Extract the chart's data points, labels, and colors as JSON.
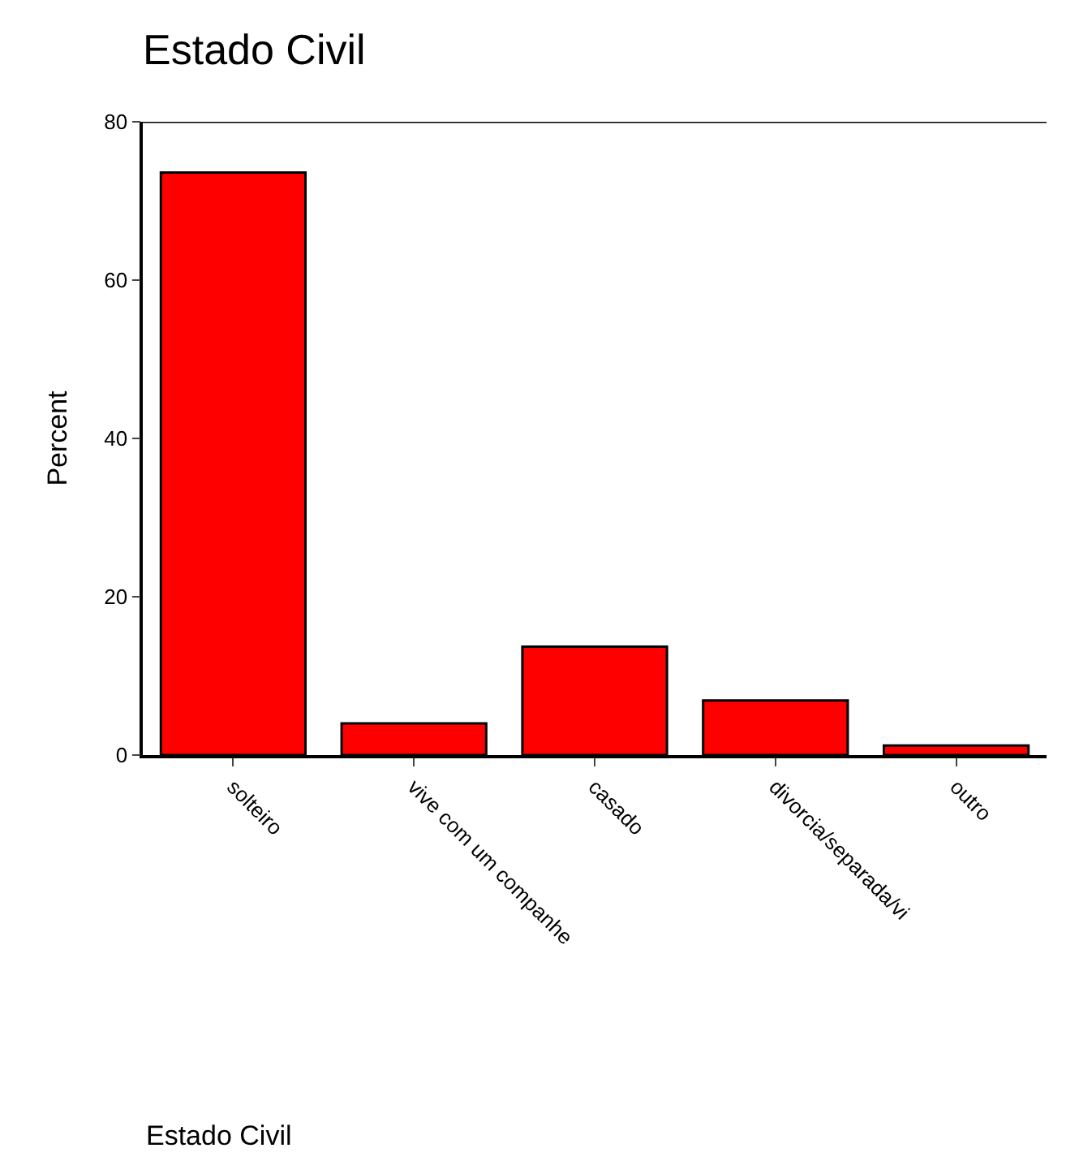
{
  "chart_data": {
    "type": "bar",
    "title": "Estado Civil",
    "annotations": [
      "Estado Civil"
    ],
    "ylabel": "Percent",
    "categories": [
      "solteiro",
      "vive com um companhe",
      "casado",
      "divorcia/separada/vi",
      "outro"
    ],
    "values": [
      73.6,
      4.0,
      13.7,
      6.9,
      1.2
    ],
    "color": "#ff0000",
    "ylim": [
      0,
      80
    ],
    "yticks": [
      0,
      20,
      40,
      60,
      80
    ]
  }
}
